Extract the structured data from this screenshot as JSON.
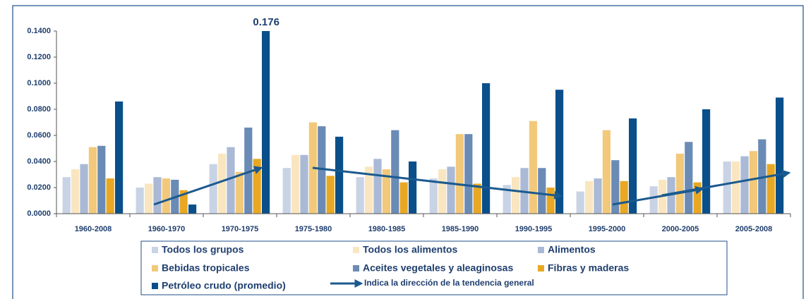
{
  "chart_data": {
    "type": "bar",
    "categories": [
      "1960-2008",
      "1960-1970",
      "1970-1975",
      "1975-1980",
      "1980-1985",
      "1985-1990",
      "1990-1995",
      "1995-2000",
      "2000-2005",
      "2005-2008"
    ],
    "series": [
      {
        "name": "Todos los grupos",
        "color": "#c9d3e6",
        "values": [
          0.028,
          0.02,
          0.038,
          0.035,
          0.028,
          0.027,
          0.022,
          0.017,
          0.021,
          0.04
        ]
      },
      {
        "name": "Todos los alimentos",
        "color": "#f9e6c0",
        "values": [
          0.034,
          0.023,
          0.046,
          0.045,
          0.036,
          0.034,
          0.028,
          0.025,
          0.026,
          0.04
        ]
      },
      {
        "name": "Alimentos",
        "color": "#a9b9d6",
        "values": [
          0.038,
          0.028,
          0.051,
          0.045,
          0.042,
          0.036,
          0.035,
          0.027,
          0.028,
          0.044
        ]
      },
      {
        "name": "Bebidas tropicales",
        "color": "#f2c97a",
        "values": [
          0.051,
          0.027,
          0.032,
          0.07,
          0.034,
          0.061,
          0.071,
          0.064,
          0.046,
          0.048
        ]
      },
      {
        "name": "Aceites vegetales y aleaginosas",
        "color": "#6a8bb5",
        "values": [
          0.052,
          0.026,
          0.066,
          0.067,
          0.064,
          0.061,
          0.035,
          0.041,
          0.055,
          0.057
        ]
      },
      {
        "name": "Fibras y maderas",
        "color": "#e8a824",
        "values": [
          0.027,
          0.018,
          0.042,
          0.029,
          0.024,
          0.023,
          0.02,
          0.025,
          0.024,
          0.038
        ]
      },
      {
        "name": "Petróleo crudo (promedio)",
        "color": "#0a4f8a",
        "values": [
          0.086,
          0.007,
          0.176,
          0.059,
          0.04,
          0.1,
          0.095,
          0.073,
          0.08,
          0.089
        ],
        "value_labels": [
          null,
          null,
          "0.176",
          null,
          null,
          null,
          null,
          null,
          null,
          null
        ]
      }
    ],
    "trend_legend": "Indica la dirección de la tendencia general",
    "ylim": [
      0,
      0.14
    ],
    "yticks": [
      {
        "value": 0,
        "label": "0.0000"
      },
      {
        "value": 0.02,
        "label": "0.0200"
      },
      {
        "value": 0.04,
        "label": "0.0400"
      },
      {
        "value": 0.06,
        "label": "0.0600"
      },
      {
        "value": 0.08,
        "label": "0.0800"
      },
      {
        "value": 0.1,
        "label": "0.1000"
      },
      {
        "value": 0.12,
        "label": "0.1200"
      },
      {
        "value": 0.14,
        "label": "0.1400"
      }
    ]
  }
}
